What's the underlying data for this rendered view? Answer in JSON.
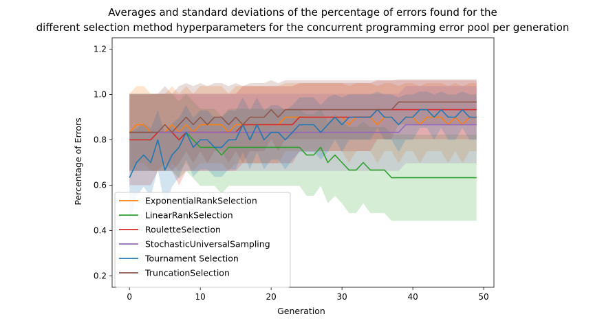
{
  "chart_data": {
    "type": "line",
    "title_lines": [
      "Averages and standard deviations of the percentage of errors found for the",
      "different selection method hyperparameters for the concurrent programming error pool per generation"
    ],
    "xlabel": "Generation",
    "ylabel": "Percentage of Errors",
    "xlim": [
      -2.45,
      51.45
    ],
    "ylim": [
      0.15,
      1.25
    ],
    "xticks": [
      0,
      10,
      20,
      30,
      40,
      50
    ],
    "yticks": [
      0.2,
      0.4,
      0.6,
      0.8,
      1.0,
      1.2
    ],
    "xtick_labels": [
      "0",
      "10",
      "20",
      "30",
      "40",
      "50"
    ],
    "ytick_labels": [
      "0.2",
      "0.4",
      "0.6",
      "0.8",
      "1.0",
      "1.2"
    ],
    "grid": false,
    "legend_position": "lower-left",
    "band_opacity": 0.2,
    "series": [
      {
        "name": "ExponentialRankSelection",
        "color": "#ff7f0e",
        "mean": [
          0.833,
          0.867,
          0.867,
          0.833,
          0.833,
          0.833,
          0.867,
          0.833,
          0.867,
          0.833,
          0.867,
          0.867,
          0.867,
          0.867,
          0.833,
          0.867,
          0.867,
          0.867,
          0.867,
          0.867,
          0.867,
          0.867,
          0.9,
          0.9,
          0.9,
          0.9,
          0.9,
          0.9,
          0.9,
          0.9,
          0.9,
          0.867,
          0.9,
          0.9,
          0.9,
          0.867,
          0.9,
          0.9,
          0.867,
          0.9,
          0.9,
          0.867,
          0.9,
          0.9,
          0.9,
          0.867,
          0.9,
          0.867,
          0.9,
          0.9
        ],
        "std": [
          0.17,
          0.17,
          0.17,
          0.17,
          0.17,
          0.17,
          0.17,
          0.17,
          0.17,
          0.17,
          0.17,
          0.17,
          0.17,
          0.17,
          0.17,
          0.17,
          0.17,
          0.17,
          0.17,
          0.17,
          0.17,
          0.17,
          0.15,
          0.15,
          0.15,
          0.15,
          0.15,
          0.15,
          0.15,
          0.15,
          0.15,
          0.17,
          0.15,
          0.15,
          0.15,
          0.17,
          0.15,
          0.15,
          0.17,
          0.15,
          0.15,
          0.17,
          0.15,
          0.15,
          0.15,
          0.17,
          0.15,
          0.17,
          0.15,
          0.15
        ]
      },
      {
        "name": "LinearRankSelection",
        "color": "#2ca02c",
        "mean": [
          0.833,
          0.833,
          0.833,
          0.833,
          0.833,
          0.833,
          0.833,
          0.8,
          0.833,
          0.8,
          0.767,
          0.767,
          0.767,
          0.733,
          0.767,
          0.767,
          0.767,
          0.767,
          0.767,
          0.767,
          0.767,
          0.767,
          0.767,
          0.767,
          0.767,
          0.733,
          0.733,
          0.767,
          0.7,
          0.733,
          0.7,
          0.667,
          0.667,
          0.7,
          0.667,
          0.667,
          0.667,
          0.633,
          0.633,
          0.633,
          0.633,
          0.633,
          0.633,
          0.633,
          0.633,
          0.633,
          0.633,
          0.633,
          0.633,
          0.633
        ],
        "std": [
          0.17,
          0.17,
          0.17,
          0.17,
          0.17,
          0.17,
          0.17,
          0.17,
          0.17,
          0.17,
          0.17,
          0.17,
          0.17,
          0.17,
          0.17,
          0.17,
          0.17,
          0.17,
          0.17,
          0.17,
          0.17,
          0.17,
          0.17,
          0.17,
          0.17,
          0.18,
          0.18,
          0.17,
          0.18,
          0.18,
          0.18,
          0.19,
          0.19,
          0.18,
          0.19,
          0.19,
          0.19,
          0.19,
          0.19,
          0.19,
          0.19,
          0.19,
          0.19,
          0.19,
          0.19,
          0.19,
          0.19,
          0.19,
          0.19,
          0.19
        ]
      },
      {
        "name": "RouletteSelection",
        "color": "#d62728",
        "mean": [
          0.8,
          0.8,
          0.8,
          0.8,
          0.833,
          0.833,
          0.833,
          0.8,
          0.833,
          0.833,
          0.833,
          0.833,
          0.833,
          0.833,
          0.833,
          0.833,
          0.867,
          0.867,
          0.867,
          0.867,
          0.867,
          0.867,
          0.867,
          0.867,
          0.9,
          0.9,
          0.9,
          0.9,
          0.9,
          0.9,
          0.9,
          0.9,
          0.9,
          0.9,
          0.9,
          0.933,
          0.933,
          0.933,
          0.933,
          0.933,
          0.933,
          0.933,
          0.933,
          0.933,
          0.933,
          0.933,
          0.933,
          0.933,
          0.933,
          0.933
        ],
        "std": [
          0.2,
          0.2,
          0.2,
          0.2,
          0.17,
          0.17,
          0.17,
          0.2,
          0.17,
          0.17,
          0.17,
          0.17,
          0.17,
          0.17,
          0.17,
          0.17,
          0.17,
          0.17,
          0.17,
          0.17,
          0.17,
          0.17,
          0.17,
          0.17,
          0.15,
          0.15,
          0.15,
          0.15,
          0.15,
          0.15,
          0.15,
          0.15,
          0.15,
          0.15,
          0.15,
          0.13,
          0.13,
          0.13,
          0.13,
          0.13,
          0.13,
          0.13,
          0.13,
          0.13,
          0.13,
          0.13,
          0.13,
          0.13,
          0.13,
          0.13
        ]
      },
      {
        "name": "StochasticUniversalSampling",
        "color": "#9467bd",
        "mean": [
          0.833,
          0.833,
          0.833,
          0.833,
          0.833,
          0.833,
          0.833,
          0.833,
          0.833,
          0.833,
          0.833,
          0.833,
          0.833,
          0.833,
          0.833,
          0.833,
          0.833,
          0.833,
          0.833,
          0.833,
          0.833,
          0.833,
          0.833,
          0.833,
          0.833,
          0.833,
          0.833,
          0.833,
          0.833,
          0.833,
          0.833,
          0.833,
          0.833,
          0.833,
          0.833,
          0.833,
          0.833,
          0.833,
          0.833,
          0.867,
          0.867,
          0.867,
          0.867,
          0.867,
          0.867,
          0.867,
          0.867,
          0.867,
          0.867,
          0.867
        ],
        "std": [
          0.17,
          0.17,
          0.17,
          0.17,
          0.17,
          0.17,
          0.17,
          0.17,
          0.17,
          0.17,
          0.17,
          0.17,
          0.17,
          0.17,
          0.17,
          0.17,
          0.17,
          0.17,
          0.17,
          0.17,
          0.17,
          0.17,
          0.17,
          0.17,
          0.17,
          0.17,
          0.17,
          0.17,
          0.17,
          0.17,
          0.17,
          0.17,
          0.17,
          0.17,
          0.17,
          0.17,
          0.17,
          0.17,
          0.17,
          0.17,
          0.17,
          0.17,
          0.17,
          0.17,
          0.17,
          0.17,
          0.17,
          0.17,
          0.17,
          0.17
        ]
      },
      {
        "name": "Tournament Selection",
        "color": "#1f77b4",
        "mean": [
          0.633,
          0.7,
          0.733,
          0.7,
          0.8,
          0.667,
          0.733,
          0.767,
          0.833,
          0.767,
          0.8,
          0.8,
          0.767,
          0.767,
          0.8,
          0.8,
          0.867,
          0.8,
          0.867,
          0.8,
          0.833,
          0.833,
          0.8,
          0.833,
          0.867,
          0.867,
          0.867,
          0.833,
          0.867,
          0.9,
          0.867,
          0.9,
          0.9,
          0.9,
          0.9,
          0.933,
          0.9,
          0.9,
          0.867,
          0.9,
          0.9,
          0.933,
          0.933,
          0.9,
          0.933,
          0.9,
          0.9,
          0.933,
          0.9,
          0.9
        ],
        "std": [
          0.2,
          0.15,
          0.14,
          0.15,
          0.13,
          0.16,
          0.14,
          0.13,
          0.12,
          0.13,
          0.13,
          0.13,
          0.13,
          0.13,
          0.13,
          0.13,
          0.12,
          0.13,
          0.12,
          0.13,
          0.12,
          0.12,
          0.13,
          0.12,
          0.12,
          0.12,
          0.12,
          0.12,
          0.12,
          0.1,
          0.12,
          0.1,
          0.1,
          0.1,
          0.1,
          0.08,
          0.1,
          0.1,
          0.12,
          0.1,
          0.1,
          0.08,
          0.08,
          0.1,
          0.08,
          0.1,
          0.1,
          0.08,
          0.1,
          0.1
        ]
      },
      {
        "name": "TruncationSelection",
        "color": "#8c564b",
        "mean": [
          0.833,
          0.833,
          0.833,
          0.833,
          0.833,
          0.867,
          0.833,
          0.867,
          0.9,
          0.867,
          0.9,
          0.867,
          0.9,
          0.9,
          0.867,
          0.9,
          0.867,
          0.9,
          0.9,
          0.9,
          0.933,
          0.9,
          0.933,
          0.933,
          0.933,
          0.933,
          0.933,
          0.933,
          0.933,
          0.933,
          0.933,
          0.933,
          0.933,
          0.933,
          0.933,
          0.933,
          0.933,
          0.933,
          0.967,
          0.967,
          0.967,
          0.967,
          0.967,
          0.967,
          0.967,
          0.967,
          0.967,
          0.967,
          0.967,
          0.967
        ],
        "std": [
          0.17,
          0.17,
          0.17,
          0.17,
          0.17,
          0.17,
          0.17,
          0.17,
          0.15,
          0.17,
          0.15,
          0.17,
          0.15,
          0.15,
          0.17,
          0.15,
          0.17,
          0.15,
          0.15,
          0.15,
          0.13,
          0.15,
          0.13,
          0.13,
          0.13,
          0.13,
          0.13,
          0.13,
          0.13,
          0.13,
          0.13,
          0.13,
          0.13,
          0.13,
          0.13,
          0.13,
          0.13,
          0.13,
          0.1,
          0.1,
          0.1,
          0.1,
          0.1,
          0.1,
          0.1,
          0.1,
          0.1,
          0.1,
          0.1,
          0.1
        ]
      }
    ]
  }
}
